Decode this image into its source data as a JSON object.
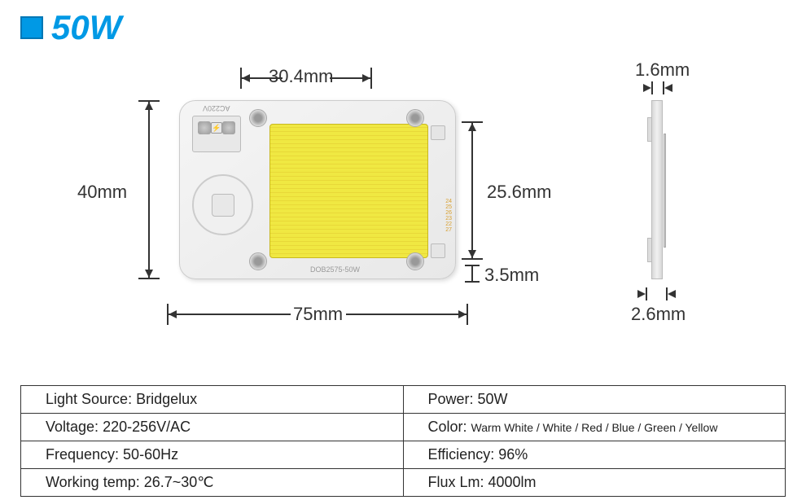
{
  "header": {
    "title": "50W",
    "accent_color": "#0099e5"
  },
  "dimensions": {
    "top_width": "30.4mm",
    "inner_height": "25.6mm",
    "hole_diameter": "3.5mm",
    "total_width": "75mm",
    "total_height": "40mm",
    "side_thin": "1.6mm",
    "side_thick": "2.6mm"
  },
  "chip": {
    "model_text": "DOB2575-50W",
    "voltage_text": "AC220V",
    "led_color": "#f0e842",
    "body_color": "#f0f0f0"
  },
  "specs": {
    "rows": [
      {
        "left_label": "Light Source:",
        "left_value": "Bridgelux",
        "right_label": "Power:",
        "right_value": "50W"
      },
      {
        "left_label": "Voltage:",
        "left_value": "220-256V/AC",
        "right_label": "Color:",
        "right_value": "Warm White / White / Red / Blue / Green / Yellow",
        "right_small": true
      },
      {
        "left_label": "Frequency:",
        "left_value": "50-60Hz",
        "right_label": "Efficiency:",
        "right_value": "96%"
      },
      {
        "left_label": "Working temp:",
        "left_value": "26.7~30℃",
        "right_label": "Flux Lm:",
        "right_value": "4000lm"
      }
    ]
  }
}
